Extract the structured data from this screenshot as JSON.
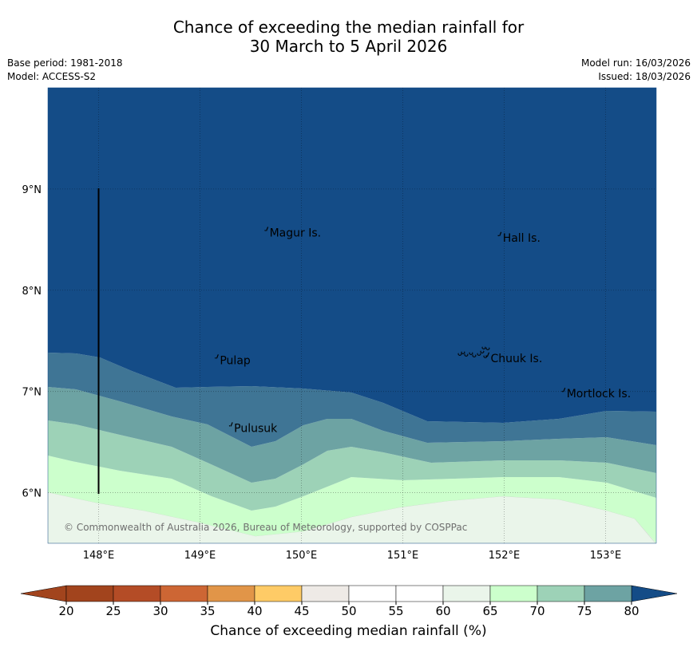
{
  "title": {
    "line1": "Chance of exceeding the median rainfall for",
    "line2": "30 March to 5 April 2026"
  },
  "meta": {
    "base_period": "Base period: 1981-2018",
    "model": "Model: ACCESS-S2",
    "model_run": "Model run: 16/03/2026",
    "issued": "Issued: 18/03/2026"
  },
  "map": {
    "lat_labels": [
      "9°N",
      "8°N",
      "7°N",
      "6°N"
    ],
    "lon_labels": [
      "148°E",
      "149°E",
      "150°E",
      "151°E",
      "152°E",
      "153°E"
    ],
    "lat_range": [
      5.5,
      10.0
    ],
    "lon_range": [
      147.5,
      153.5
    ],
    "places": [
      {
        "name": "Magur Is.",
        "lon": 149.67,
        "lat": 8.57
      },
      {
        "name": "Hall Is.",
        "lon": 151.97,
        "lat": 8.52
      },
      {
        "name": "Pulap",
        "lon": 149.18,
        "lat": 7.31
      },
      {
        "name": "Chuuk Is.",
        "lon": 151.85,
        "lat": 7.33
      },
      {
        "name": "Mortlock Is.",
        "lon": 152.6,
        "lat": 6.98
      },
      {
        "name": "Pulusuk",
        "lon": 149.32,
        "lat": 6.64
      }
    ],
    "copyright": "© Commonwealth of Australia 2026, Bureau of Meteorology, supported by COSPPac"
  },
  "colorbar": {
    "ticks": [
      "20",
      "25",
      "30",
      "35",
      "40",
      "45",
      "50",
      "55",
      "60",
      "65",
      "70",
      "75",
      "80"
    ],
    "colors": [
      "#a2441d",
      "#b44c26",
      "#cd6634",
      "#e19548",
      "#fecb66",
      "#eeeae6",
      "#ffffff",
      "#ffffff",
      "#eaf5ea",
      "#ccffcc",
      "#9dd2b7",
      "#6da3a3",
      "#3f7595"
    ],
    "extend_low_color": "#a2441d",
    "extend_high_color": "#144c87",
    "label": "Chance of exceeding median rainfall (%)"
  }
}
